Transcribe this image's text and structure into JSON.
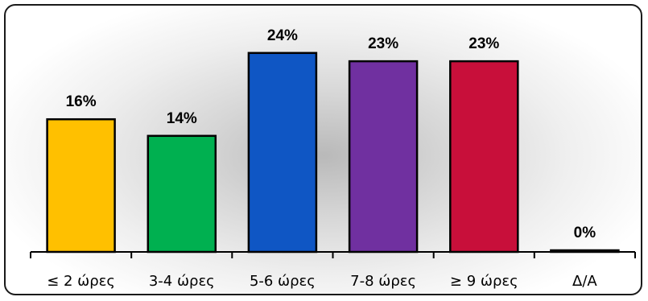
{
  "chart_data": {
    "type": "bar",
    "categories": [
      "≤ 2 ώρες",
      "3-4 ώρες",
      "5-6 ώρες",
      "7-8 ώρες",
      "≥ 9 ώρες",
      "Δ/Α"
    ],
    "values": [
      16,
      14,
      24,
      23,
      23,
      0
    ],
    "data_labels": [
      "16%",
      "14%",
      "24%",
      "23%",
      "23%",
      "0%"
    ],
    "colors": [
      "#FFC000",
      "#00B050",
      "#0F56C4",
      "#7030A0",
      "#C80F3A",
      "#1a1a1a"
    ],
    "title": "",
    "xlabel": "",
    "ylabel": "",
    "ylim": [
      0,
      25
    ],
    "grid": false,
    "legend": "none"
  }
}
